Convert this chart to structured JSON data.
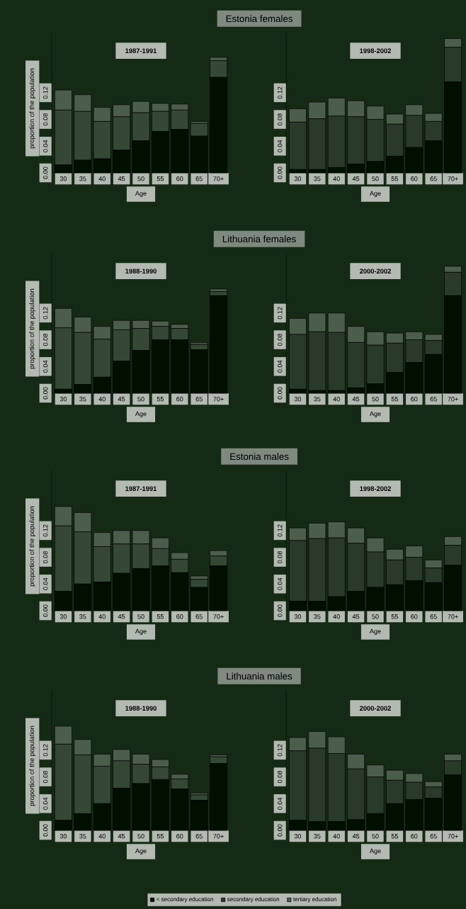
{
  "chart_data": [
    {
      "type": "bar",
      "stacked": true,
      "title": "1987-1991",
      "annotations": [
        "Estonia females"
      ],
      "xlabel": "Age",
      "ylabel": "proportion of the population",
      "categories": [
        "30",
        "35",
        "40",
        "45",
        "50",
        "55",
        "60",
        "65",
        "70+"
      ],
      "ylim": [
        0,
        0.21
      ],
      "yticks": [
        {
          "value": 0,
          "label": "0.00"
        },
        {
          "value": 0.02,
          "label": null
        },
        {
          "value": 0.04,
          "label": "0.04"
        },
        {
          "value": 0.06,
          "label": null
        },
        {
          "value": 0.08,
          "label": "0.08"
        },
        {
          "value": 0.1,
          "label": null
        },
        {
          "value": 0.12,
          "label": "0.12"
        },
        {
          "value": 0.14,
          "label": null
        }
      ],
      "series": [
        {
          "color": "#000f00",
          "values": [
            0.012,
            0.019,
            0.021,
            0.034,
            0.048,
            0.062,
            0.065,
            0.055,
            0.143
          ]
        },
        {
          "color": "#354835",
          "values": [
            0.082,
            0.073,
            0.056,
            0.05,
            0.042,
            0.03,
            0.029,
            0.019,
            0.025
          ]
        },
        {
          "color": "#4b5e4b",
          "values": [
            0.03,
            0.025,
            0.021,
            0.018,
            0.017,
            0.012,
            0.009,
            0.003,
            0.005
          ]
        }
      ]
    },
    {
      "type": "bar",
      "stacked": true,
      "title": "1998-2002",
      "xlabel": "Age",
      "categories": [
        "30",
        "35",
        "40",
        "45",
        "50",
        "55",
        "60",
        "65",
        "70+"
      ],
      "ylim": [
        0,
        0.21
      ],
      "yticks": [
        {
          "value": 0,
          "label": "0.00"
        },
        {
          "value": 0.02,
          "label": null
        },
        {
          "value": 0.04,
          "label": "0.04"
        },
        {
          "value": 0.06,
          "label": null
        },
        {
          "value": 0.08,
          "label": "0.08"
        },
        {
          "value": 0.1,
          "label": null
        },
        {
          "value": 0.12,
          "label": "0.12"
        },
        {
          "value": 0.14,
          "label": null
        }
      ],
      "series": [
        {
          "color": "#000f00",
          "values": [
            0.005,
            0.005,
            0.008,
            0.013,
            0.017,
            0.025,
            0.038,
            0.048,
            0.136
          ]
        },
        {
          "color": "#2a3a2a",
          "values": [
            0.071,
            0.076,
            0.077,
            0.071,
            0.063,
            0.048,
            0.048,
            0.029,
            0.052
          ]
        },
        {
          "color": "#4b5e4b",
          "values": [
            0.02,
            0.025,
            0.027,
            0.024,
            0.02,
            0.015,
            0.016,
            0.012,
            0.013
          ]
        }
      ]
    },
    {
      "type": "bar",
      "stacked": true,
      "title": "1988-1990",
      "annotations": [
        "Lithuania females"
      ],
      "xlabel": "Age",
      "ylabel": "proportion of the population",
      "categories": [
        "30",
        "35",
        "40",
        "45",
        "50",
        "55",
        "60",
        "65",
        "70+"
      ],
      "ylim": [
        0,
        0.21
      ],
      "yticks": [
        {
          "value": 0,
          "label": "0.00"
        },
        {
          "value": 0.02,
          "label": null
        },
        {
          "value": 0.04,
          "label": "0.04"
        },
        {
          "value": 0.06,
          "label": null
        },
        {
          "value": 0.08,
          "label": "0.08"
        },
        {
          "value": 0.1,
          "label": null
        },
        {
          "value": 0.12,
          "label": "0.12"
        },
        {
          "value": 0.14,
          "label": null
        }
      ],
      "series": [
        {
          "color": "#000f00",
          "values": [
            0.006,
            0.013,
            0.024,
            0.048,
            0.064,
            0.08,
            0.08,
            0.065,
            0.146
          ]
        },
        {
          "color": "#354835",
          "values": [
            0.092,
            0.078,
            0.057,
            0.047,
            0.033,
            0.02,
            0.017,
            0.008,
            0.006
          ]
        },
        {
          "color": "#4b5e4b",
          "values": [
            0.029,
            0.023,
            0.019,
            0.014,
            0.012,
            0.008,
            0.006,
            0.003,
            0.004
          ]
        }
      ]
    },
    {
      "type": "bar",
      "stacked": true,
      "title": "2000-2002",
      "xlabel": "Age",
      "categories": [
        "30",
        "35",
        "40",
        "45",
        "50",
        "55",
        "60",
        "65",
        "70+"
      ],
      "ylim": [
        0,
        0.21
      ],
      "yticks": [
        {
          "value": 0,
          "label": "0.00"
        },
        {
          "value": 0.02,
          "label": null
        },
        {
          "value": 0.04,
          "label": "0.04"
        },
        {
          "value": 0.06,
          "label": null
        },
        {
          "value": 0.08,
          "label": "0.08"
        },
        {
          "value": 0.1,
          "label": null
        },
        {
          "value": 0.12,
          "label": "0.12"
        },
        {
          "value": 0.14,
          "label": null
        }
      ],
      "series": [
        {
          "color": "#000f00",
          "values": [
            0.006,
            0.004,
            0.004,
            0.008,
            0.014,
            0.031,
            0.046,
            0.058,
            0.146
          ]
        },
        {
          "color": "#2a3a2a",
          "values": [
            0.082,
            0.088,
            0.087,
            0.068,
            0.058,
            0.044,
            0.034,
            0.021,
            0.035
          ]
        },
        {
          "color": "#4b5e4b",
          "values": [
            0.024,
            0.028,
            0.029,
            0.024,
            0.02,
            0.015,
            0.012,
            0.009,
            0.009
          ]
        }
      ]
    },
    {
      "type": "bar",
      "stacked": true,
      "title": "1987-1991",
      "annotations": [
        "Estonia males"
      ],
      "xlabel": "Age",
      "ylabel": "proportion of the population",
      "categories": [
        "30",
        "35",
        "40",
        "45",
        "50",
        "55",
        "60",
        "65",
        "70+"
      ],
      "ylim": [
        0,
        0.21
      ],
      "yticks": [
        {
          "value": 0,
          "label": "0.00"
        },
        {
          "value": 0.02,
          "label": null
        },
        {
          "value": 0.04,
          "label": "0.04"
        },
        {
          "value": 0.06,
          "label": null
        },
        {
          "value": 0.08,
          "label": "0.08"
        },
        {
          "value": 0.1,
          "label": null
        },
        {
          "value": 0.12,
          "label": "0.12"
        },
        {
          "value": 0.14,
          "label": null
        }
      ],
      "series": [
        {
          "color": "#000f00",
          "values": [
            0.029,
            0.04,
            0.043,
            0.056,
            0.063,
            0.067,
            0.057,
            0.035,
            0.067
          ]
        },
        {
          "color": "#354835",
          "values": [
            0.098,
            0.078,
            0.053,
            0.044,
            0.037,
            0.026,
            0.02,
            0.012,
            0.015
          ]
        },
        {
          "color": "#4b5e4b",
          "values": [
            0.029,
            0.029,
            0.021,
            0.02,
            0.02,
            0.016,
            0.01,
            0.005,
            0.008
          ]
        }
      ]
    },
    {
      "type": "bar",
      "stacked": true,
      "title": "1998-2002",
      "xlabel": "Age",
      "categories": [
        "30",
        "35",
        "40",
        "45",
        "50",
        "55",
        "60",
        "65",
        "70+"
      ],
      "ylim": [
        0,
        0.21
      ],
      "yticks": [
        {
          "value": 0,
          "label": "0.00"
        },
        {
          "value": 0.02,
          "label": null
        },
        {
          "value": 0.04,
          "label": "0.04"
        },
        {
          "value": 0.06,
          "label": null
        },
        {
          "value": 0.08,
          "label": "0.08"
        },
        {
          "value": 0.1,
          "label": null
        },
        {
          "value": 0.12,
          "label": "0.12"
        },
        {
          "value": 0.14,
          "label": null
        }
      ],
      "series": [
        {
          "color": "#000f00",
          "values": [
            0.014,
            0.014,
            0.021,
            0.029,
            0.035,
            0.039,
            0.045,
            0.042,
            0.068
          ]
        },
        {
          "color": "#2a3a2a",
          "values": [
            0.091,
            0.094,
            0.088,
            0.072,
            0.053,
            0.037,
            0.035,
            0.022,
            0.03
          ]
        },
        {
          "color": "#4b5e4b",
          "values": [
            0.019,
            0.023,
            0.024,
            0.023,
            0.021,
            0.016,
            0.017,
            0.012,
            0.013
          ]
        }
      ]
    },
    {
      "type": "bar",
      "stacked": true,
      "title": "1988-1990",
      "annotations": [
        "Lithuania males"
      ],
      "xlabel": "Age",
      "ylabel": "proportion of the population",
      "categories": [
        "30",
        "35",
        "40",
        "45",
        "50",
        "55",
        "60",
        "65",
        "70+"
      ],
      "ylim": [
        0,
        0.21
      ],
      "yticks": [
        {
          "value": 0,
          "label": "0.00"
        },
        {
          "value": 0.02,
          "label": null
        },
        {
          "value": 0.04,
          "label": "0.04"
        },
        {
          "value": 0.06,
          "label": null
        },
        {
          "value": 0.08,
          "label": "0.08"
        },
        {
          "value": 0.1,
          "label": null
        },
        {
          "value": 0.12,
          "label": "0.12"
        },
        {
          "value": 0.14,
          "label": null
        }
      ],
      "series": [
        {
          "color": "#000f00",
          "values": [
            0.015,
            0.025,
            0.04,
            0.063,
            0.07,
            0.076,
            0.062,
            0.045,
            0.1
          ]
        },
        {
          "color": "#354835",
          "values": [
            0.114,
            0.088,
            0.056,
            0.041,
            0.029,
            0.019,
            0.015,
            0.008,
            0.01
          ]
        },
        {
          "color": "#4b5e4b",
          "values": [
            0.027,
            0.023,
            0.018,
            0.017,
            0.015,
            0.011,
            0.007,
            0.003,
            0.003
          ]
        }
      ]
    },
    {
      "type": "bar",
      "stacked": true,
      "title": "2000-2002",
      "xlabel": "Age",
      "categories": [
        "30",
        "35",
        "40",
        "45",
        "50",
        "55",
        "60",
        "65",
        "70+"
      ],
      "ylim": [
        0,
        0.21
      ],
      "yticks": [
        {
          "value": 0,
          "label": "0.00"
        },
        {
          "value": 0.02,
          "label": null
        },
        {
          "value": 0.04,
          "label": "0.04"
        },
        {
          "value": 0.06,
          "label": null
        },
        {
          "value": 0.08,
          "label": "0.08"
        },
        {
          "value": 0.1,
          "label": null
        },
        {
          "value": 0.12,
          "label": "0.12"
        },
        {
          "value": 0.14,
          "label": null
        }
      ],
      "legend": "bottom",
      "series": [
        {
          "name": "< secondary education",
          "color": "#000f00",
          "values": [
            0.015,
            0.013,
            0.013,
            0.016,
            0.025,
            0.04,
            0.046,
            0.048,
            0.083
          ]
        },
        {
          "name": "secondary education",
          "color": "#2a3a2a",
          "values": [
            0.104,
            0.11,
            0.102,
            0.076,
            0.055,
            0.035,
            0.026,
            0.017,
            0.021
          ]
        },
        {
          "name": "tertiary education",
          "color": "#4b5e4b",
          "values": [
            0.02,
            0.025,
            0.025,
            0.022,
            0.018,
            0.015,
            0.013,
            0.008,
            0.01
          ]
        }
      ]
    }
  ]
}
